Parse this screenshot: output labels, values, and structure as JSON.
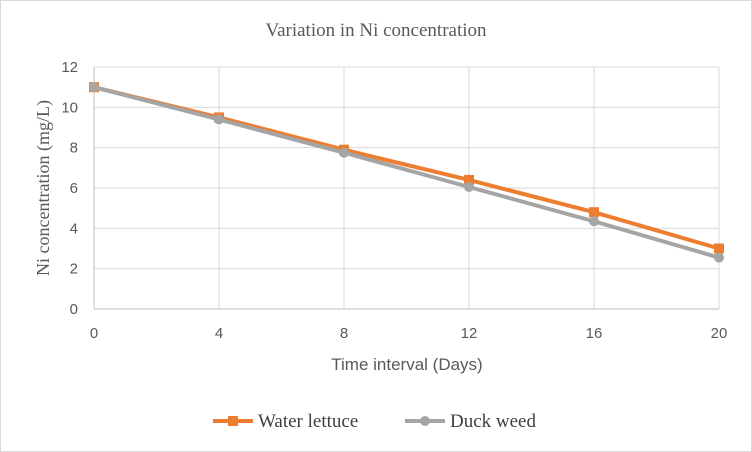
{
  "chart_data": {
    "type": "line",
    "title": "Variation in Ni concentration",
    "xlabel": "Time interval (Days)",
    "ylabel": "Ni concentration (mg/L)",
    "x": [
      0,
      4,
      8,
      12,
      16,
      20
    ],
    "x_tick_labels": [
      "0",
      "4",
      "8",
      "12",
      "16",
      "20"
    ],
    "y_tick_labels": [
      "0",
      "2",
      "4",
      "6",
      "8",
      "10",
      "12"
    ],
    "ylim": [
      0,
      12
    ],
    "grid": true,
    "legend_position": "bottom",
    "series": [
      {
        "name": "Water lettuce",
        "color": "#ED7D31",
        "marker": "square",
        "values": [
          11.0,
          9.5,
          7.9,
          6.4,
          4.8,
          3.0
        ]
      },
      {
        "name": "Duck weed",
        "color": "#A5A5A5",
        "marker": "circle",
        "values": [
          11.0,
          9.4,
          7.75,
          6.05,
          4.35,
          2.55
        ]
      }
    ]
  }
}
